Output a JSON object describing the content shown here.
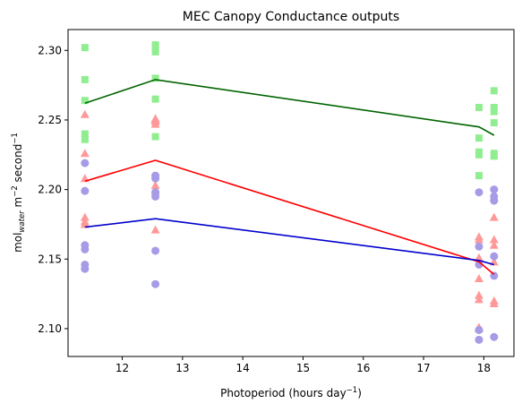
{
  "chart_data": {
    "type": "scatter",
    "title": "MEC Canopy Conductance outputs",
    "xlabel": {
      "main": "Photoperiod (hours day",
      "sup": "−1",
      "tail": ")"
    },
    "ylabel": {
      "pre": "mol",
      "sub": "water",
      "mid": " m",
      "sup1": "−2",
      "mid2": " second",
      "sup2": "−1"
    },
    "xlim": [
      11.1,
      18.5
    ],
    "ylim": [
      2.08,
      2.315
    ],
    "x_ticks": [
      {
        "value": 12,
        "label": "12"
      },
      {
        "value": 13,
        "label": "13"
      },
      {
        "value": 14,
        "label": "14"
      },
      {
        "value": 15,
        "label": "15"
      },
      {
        "value": 16,
        "label": "16"
      },
      {
        "value": 17,
        "label": "17"
      },
      {
        "value": 18,
        "label": "18"
      }
    ],
    "y_ticks": [
      {
        "value": 2.1,
        "label": "2.10"
      },
      {
        "value": 2.15,
        "label": "2.15"
      },
      {
        "value": 2.2,
        "label": "2.20"
      },
      {
        "value": 2.25,
        "label": "2.25"
      },
      {
        "value": 2.3,
        "label": "2.30"
      }
    ],
    "grid": false,
    "series": [
      {
        "marker": "square",
        "color": "#90ee90",
        "line_color": "#006400",
        "points": [
          [
            11.38,
            2.302
          ],
          [
            11.38,
            2.279
          ],
          [
            11.38,
            2.264
          ],
          [
            11.38,
            2.24
          ],
          [
            11.38,
            2.236
          ],
          [
            12.55,
            2.304
          ],
          [
            12.55,
            2.302
          ],
          [
            12.55,
            2.299
          ],
          [
            12.55,
            2.28
          ],
          [
            12.55,
            2.265
          ],
          [
            12.55,
            2.238
          ],
          [
            17.92,
            2.259
          ],
          [
            17.92,
            2.237
          ],
          [
            17.92,
            2.227
          ],
          [
            17.92,
            2.225
          ],
          [
            17.92,
            2.21
          ],
          [
            18.17,
            2.271
          ],
          [
            18.17,
            2.259
          ],
          [
            18.17,
            2.256
          ],
          [
            18.17,
            2.248
          ],
          [
            18.17,
            2.226
          ],
          [
            18.17,
            2.224
          ]
        ],
        "line": [
          [
            11.38,
            2.262
          ],
          [
            12.55,
            2.279
          ],
          [
            17.92,
            2.245
          ],
          [
            18.17,
            2.239
          ]
        ]
      },
      {
        "marker": "triangle",
        "color": "#ff9999",
        "line_color": "#ff0000",
        "points": [
          [
            11.38,
            2.254
          ],
          [
            11.38,
            2.226
          ],
          [
            11.38,
            2.208
          ],
          [
            11.38,
            2.18
          ],
          [
            11.38,
            2.177
          ],
          [
            11.38,
            2.175
          ],
          [
            12.55,
            2.251
          ],
          [
            12.55,
            2.25
          ],
          [
            12.55,
            2.249
          ],
          [
            12.55,
            2.247
          ],
          [
            12.55,
            2.203
          ],
          [
            12.55,
            2.199
          ],
          [
            12.55,
            2.171
          ],
          [
            17.92,
            2.166
          ],
          [
            17.92,
            2.164
          ],
          [
            17.92,
            2.151
          ],
          [
            17.92,
            2.136
          ],
          [
            17.92,
            2.124
          ],
          [
            17.92,
            2.121
          ],
          [
            17.92,
            2.101
          ],
          [
            17.92,
            2.1
          ],
          [
            18.17,
            2.18
          ],
          [
            18.17,
            2.164
          ],
          [
            18.17,
            2.16
          ],
          [
            18.17,
            2.148
          ],
          [
            18.17,
            2.12
          ],
          [
            18.17,
            2.118
          ]
        ],
        "line": [
          [
            11.38,
            2.206
          ],
          [
            12.55,
            2.221
          ],
          [
            17.92,
            2.148
          ],
          [
            18.17,
            2.139
          ]
        ]
      },
      {
        "marker": "circle",
        "color": "#a59be6",
        "line_color": "#0000cd",
        "points": [
          [
            11.38,
            2.219
          ],
          [
            11.38,
            2.199
          ],
          [
            11.38,
            2.16
          ],
          [
            11.38,
            2.157
          ],
          [
            11.38,
            2.146
          ],
          [
            11.38,
            2.143
          ],
          [
            12.55,
            2.21
          ],
          [
            12.55,
            2.208
          ],
          [
            12.55,
            2.198
          ],
          [
            12.55,
            2.195
          ],
          [
            12.55,
            2.156
          ],
          [
            12.55,
            2.132
          ],
          [
            17.92,
            2.198
          ],
          [
            17.92,
            2.159
          ],
          [
            17.92,
            2.146
          ],
          [
            17.92,
            2.099
          ],
          [
            17.92,
            2.092
          ],
          [
            18.17,
            2.2
          ],
          [
            18.17,
            2.195
          ],
          [
            18.17,
            2.192
          ],
          [
            18.17,
            2.152
          ],
          [
            18.17,
            2.138
          ],
          [
            18.17,
            2.094
          ]
        ],
        "line": [
          [
            11.38,
            2.173
          ],
          [
            12.55,
            2.179
          ],
          [
            17.92,
            2.149
          ],
          [
            18.17,
            2.146
          ]
        ]
      }
    ]
  }
}
